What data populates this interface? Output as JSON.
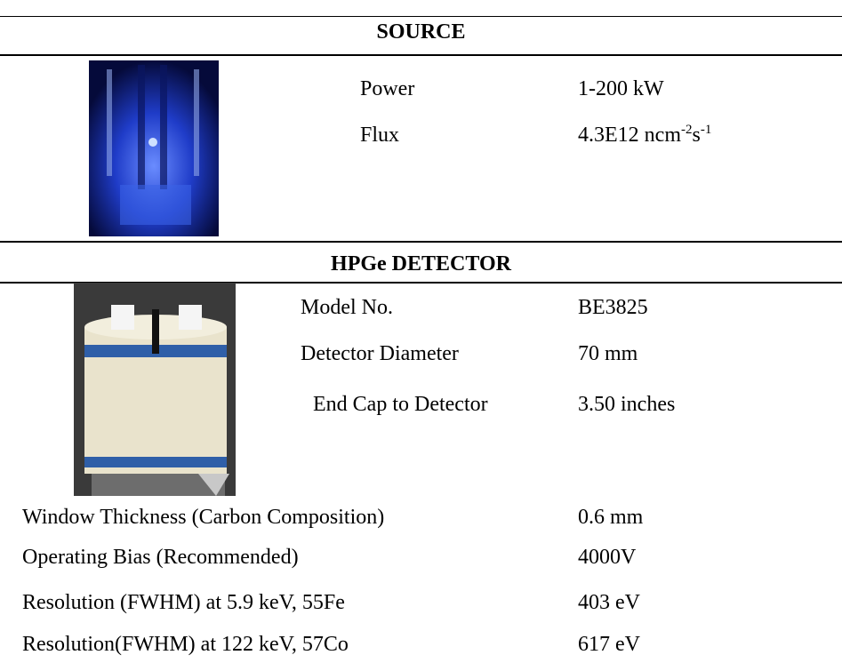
{
  "source": {
    "header": "SOURCE",
    "rows": [
      {
        "label": "Power",
        "value": "1-200 kW"
      },
      {
        "label": "Flux",
        "value": {
          "base": "4.3E12 ncm",
          "exp1": "-2",
          "unit2": "s",
          "exp2": "-1"
        }
      }
    ]
  },
  "detector": {
    "header": "HPGe DETECTOR",
    "rows": [
      {
        "label": "Model No.",
        "value": "BE3825"
      },
      {
        "label": "Detector Diameter",
        "value": "70 mm"
      },
      {
        "label": "End Cap to Detector",
        "value": "3.50 inches"
      },
      {
        "label": "Window Thickness (Carbon Composition)",
        "value": "0.6 mm"
      },
      {
        "label": "Operating Bias (Recommended)",
        "value": "4000V"
      },
      {
        "label": "Resolution (FWHM) at 5.9 keV, 55Fe",
        "value": "403 eV"
      },
      {
        "label": "Resolution(FWHM) at 122 keV, 57Co",
        "value": "617 eV"
      }
    ]
  }
}
